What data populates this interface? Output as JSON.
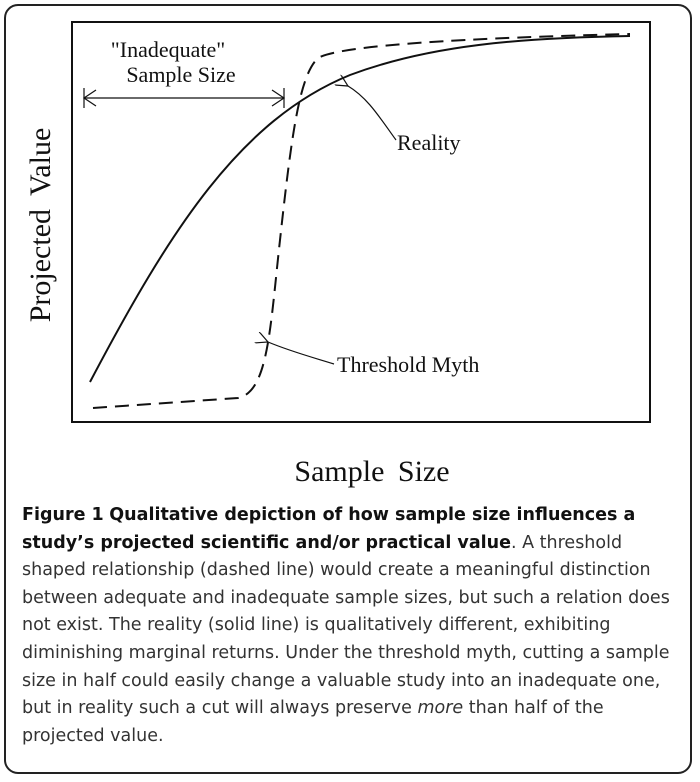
{
  "figure": {
    "x_axis_label": "Sample Size",
    "y_axis_label": "Projected Value",
    "annotation_inadequate_line1": "\"Inadequate\"",
    "annotation_inadequate_line2": "Sample Size",
    "annotation_reality": "Reality",
    "annotation_threshold": "Threshold Myth",
    "series": [
      {
        "name": "Reality",
        "style": "solid"
      },
      {
        "name": "Threshold Myth",
        "style": "dashed"
      }
    ]
  },
  "caption": {
    "label": "Figure 1",
    "title": "Qualitative depiction of how sample size influences a study’s projected scientific and/or practical value",
    "period": ".",
    "body_part1": " A threshold shaped relationship (dashed line) would create a meaningful distinction between adequate and inadequate sample sizes, but such a relation does not exist. The reality (solid line) is qualitatively different, exhibiting diminishing marginal returns. Under the threshold myth, cutting a sample size in half could easily change a valuable study into an inadequate one, but in reality such a cut will always preserve ",
    "body_emphasis": "more",
    "body_part2": " than half of the projected value."
  },
  "colors": {
    "ink": "#111111",
    "caption_text": "#333333",
    "frame": "#222222"
  }
}
